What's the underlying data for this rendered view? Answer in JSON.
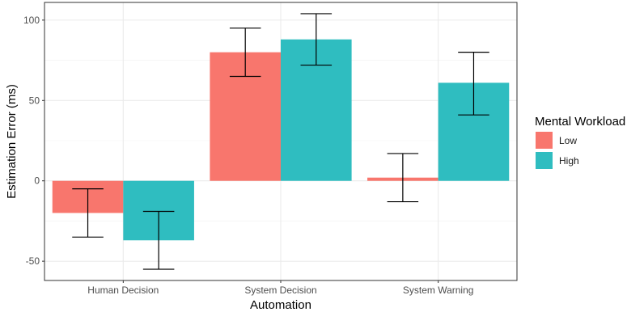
{
  "chart_data": {
    "type": "bar",
    "title": "",
    "xlabel": "Automation",
    "ylabel": "Estimation Error (ms)",
    "categories": [
      "Human Decision",
      "System Decision",
      "System Warning"
    ],
    "ylim": [
      -62,
      111
    ],
    "yticks": [
      -50,
      0,
      50,
      100
    ],
    "grid": true,
    "legend": {
      "title": "Mental Workload",
      "position": "right"
    },
    "series": [
      {
        "name": "Low",
        "color": "#F8766D",
        "values": [
          -20,
          80,
          2
        ],
        "error_low": [
          -35,
          65,
          -13
        ],
        "error_high": [
          -5,
          95,
          17
        ]
      },
      {
        "name": "High",
        "color": "#2FBDC0",
        "values": [
          -37,
          88,
          61
        ],
        "error_low": [
          -55,
          72,
          41
        ],
        "error_high": [
          -19,
          104,
          80
        ]
      }
    ]
  }
}
